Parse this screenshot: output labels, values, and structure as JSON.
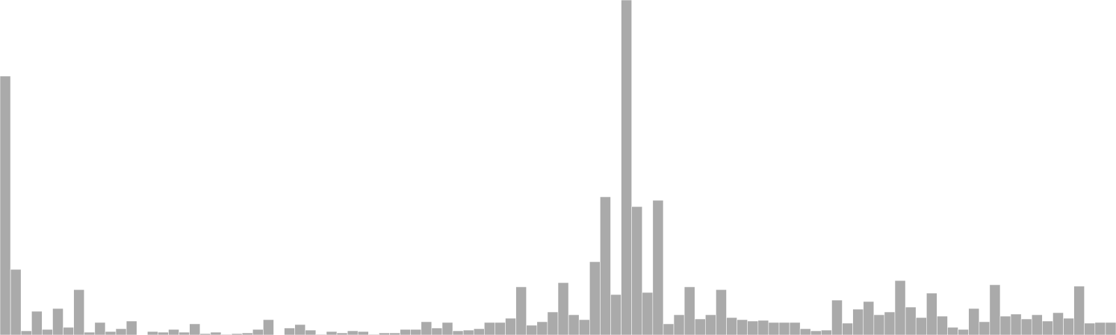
{
  "chart_data": {
    "type": "bar",
    "title": "",
    "xlabel": "",
    "ylabel": "",
    "grid": false,
    "legend": "none",
    "ylim": [
      0,
      480
    ],
    "colors": {
      "bar": "#aaaaaa",
      "bar_edge": "#ffffff",
      "background": "#ffffff"
    },
    "values": [
      371,
      94,
      6,
      34,
      8,
      38,
      11,
      65,
      4,
      18,
      5,
      9,
      20,
      0,
      5,
      4,
      8,
      4,
      16,
      2,
      4,
      1,
      2,
      3,
      8,
      22,
      0,
      10,
      15,
      7,
      1,
      5,
      3,
      6,
      5,
      1,
      3,
      3,
      8,
      8,
      19,
      10,
      18,
      6,
      7,
      9,
      18,
      18,
      24,
      69,
      14,
      19,
      33,
      75,
      29,
      22,
      105,
      198,
      58,
      480,
      184,
      61,
      193,
      16,
      29,
      69,
      23,
      29,
      65,
      25,
      22,
      20,
      21,
      18,
      18,
      18,
      9,
      6,
      7,
      50,
      17,
      37,
      48,
      29,
      33,
      78,
      40,
      25,
      60,
      27,
      11,
      8,
      38,
      19,
      72,
      27,
      30,
      23,
      29,
      20,
      32,
      24,
      70,
      17,
      18,
      18
    ]
  }
}
